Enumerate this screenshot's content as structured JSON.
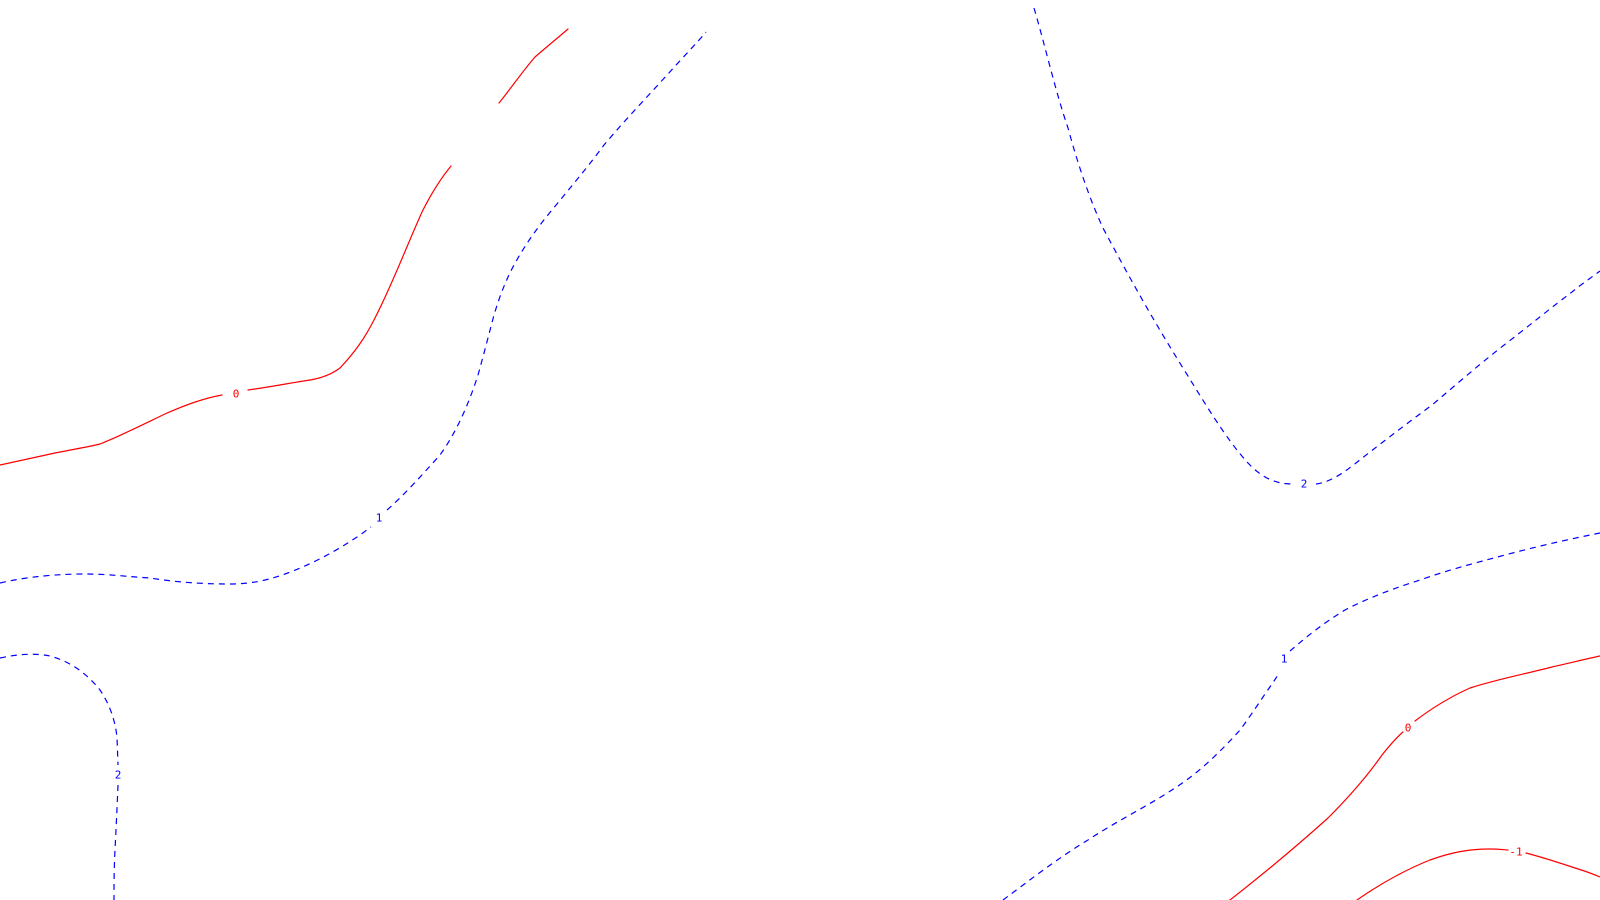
{
  "colors": {
    "background": "#ffffff",
    "positive_contour": "#0000ff",
    "nonpositive_contour": "#ff0000"
  },
  "contours": [
    {
      "id": "c-red-0-nw",
      "level": 0,
      "style": "solid",
      "color": "#ff0000",
      "label": "0"
    },
    {
      "id": "c-blue-1-west",
      "level": 1,
      "style": "dashed",
      "color": "#0000ff",
      "label": "1"
    },
    {
      "id": "c-blue-2-sw",
      "level": 2,
      "style": "dashed",
      "color": "#0000ff",
      "label": "2"
    },
    {
      "id": "c-blue-2-ne",
      "level": 2,
      "style": "dashed",
      "color": "#0000ff",
      "label": "2"
    },
    {
      "id": "c-blue-1-se",
      "level": 1,
      "style": "dashed",
      "color": "#0000ff",
      "label": "1"
    },
    {
      "id": "c-red-0-se",
      "level": 0,
      "style": "solid",
      "color": "#ff0000",
      "label": "0"
    },
    {
      "id": "c-red-neg1-se",
      "level": -1,
      "style": "solid",
      "color": "#ff0000",
      "label": "-1"
    }
  ]
}
